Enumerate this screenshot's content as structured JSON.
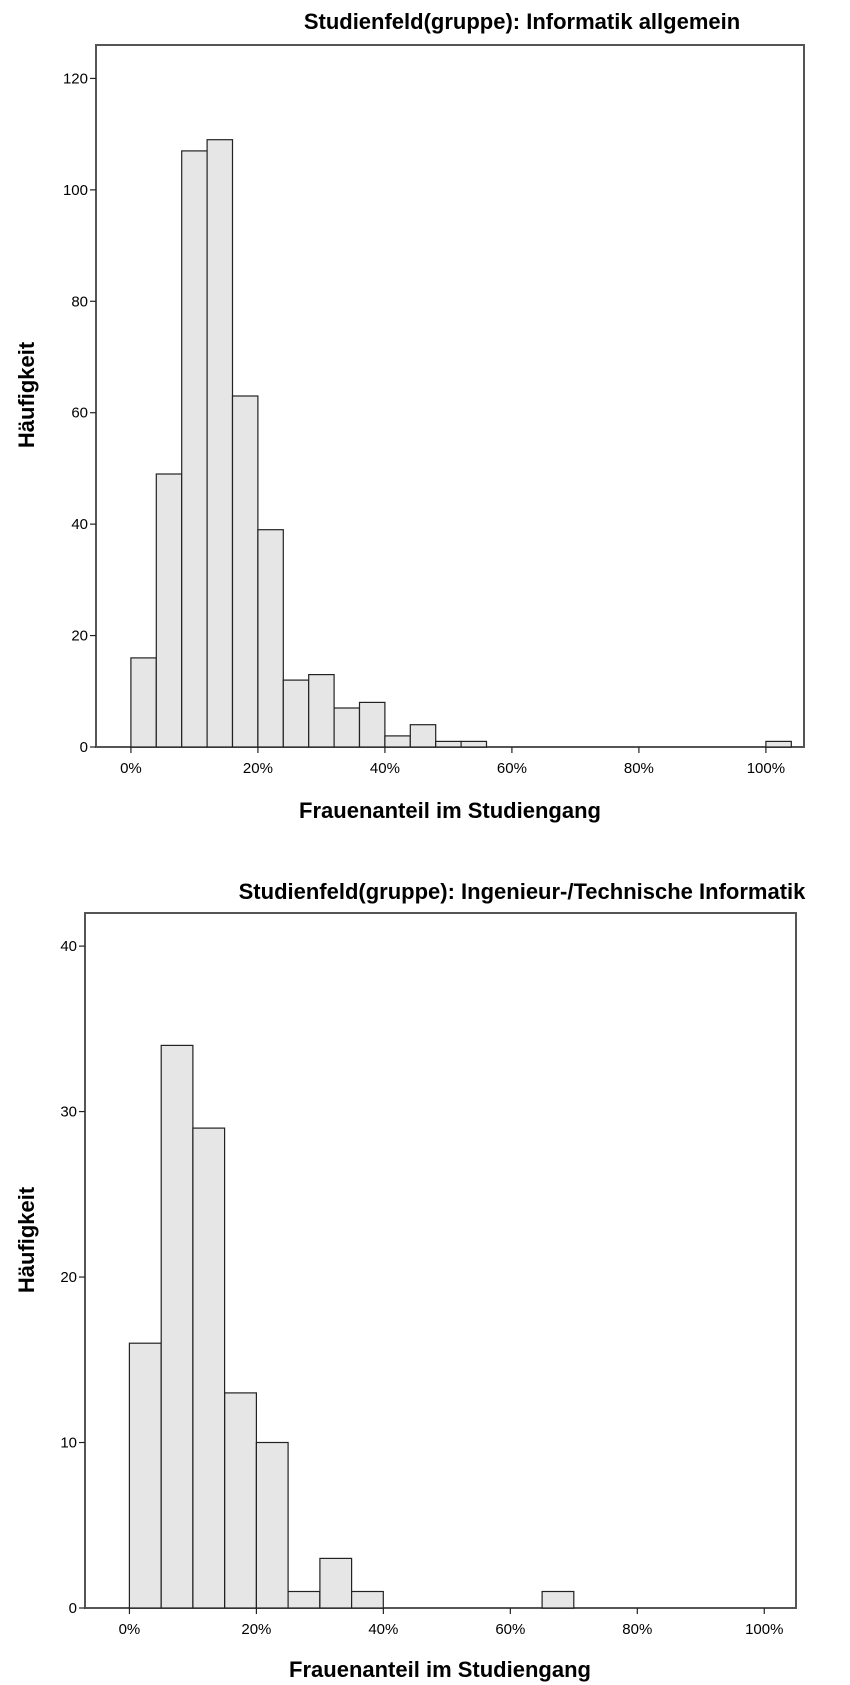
{
  "chart_data": [
    {
      "type": "bar",
      "title": "Studienfeld(gruppe): Informatik allgemein",
      "xlabel": "Frauenanteil im Studiengang",
      "ylabel": "Häufigkeit",
      "xlim": [
        -5.5,
        106
      ],
      "ylim": [
        0,
        126
      ],
      "bin_width": 4,
      "bins_start": [
        0,
        4,
        8,
        12,
        16,
        20,
        24,
        28,
        32,
        36,
        40,
        44,
        48,
        52,
        100
      ],
      "values": [
        16,
        49,
        107,
        109,
        63,
        39,
        12,
        13,
        7,
        8,
        2,
        4,
        1,
        1,
        1
      ],
      "xticks": [
        {
          "value": 0,
          "label": "0%"
        },
        {
          "value": 20,
          "label": "20%"
        },
        {
          "value": 40,
          "label": "40%"
        },
        {
          "value": 60,
          "label": "60%"
        },
        {
          "value": 80,
          "label": "80%"
        },
        {
          "value": 100,
          "label": "100%"
        }
      ],
      "yticks": [
        {
          "value": 0,
          "label": "0"
        },
        {
          "value": 20,
          "label": "20"
        },
        {
          "value": 40,
          "label": "40"
        },
        {
          "value": 60,
          "label": "60"
        },
        {
          "value": 80,
          "label": "80"
        },
        {
          "value": 100,
          "label": "100"
        },
        {
          "value": 120,
          "label": "120"
        }
      ],
      "grid": false,
      "bar_color": "#e6e6e6"
    },
    {
      "type": "bar",
      "title": "Studienfeld(gruppe): Ingenieur-/Technische Informatik",
      "xlabel": "Frauenanteil im Studiengang",
      "ylabel": "Häufigkeit",
      "xlim": [
        -7,
        105
      ],
      "ylim": [
        0,
        42
      ],
      "bin_width": 5,
      "bins_start": [
        0,
        5,
        10,
        15,
        20,
        25,
        30,
        35,
        65
      ],
      "values": [
        16,
        34,
        29,
        13,
        10,
        1,
        3,
        1,
        1
      ],
      "xticks": [
        {
          "value": 0,
          "label": "0%"
        },
        {
          "value": 20,
          "label": "20%"
        },
        {
          "value": 40,
          "label": "40%"
        },
        {
          "value": 60,
          "label": "60%"
        },
        {
          "value": 80,
          "label": "80%"
        },
        {
          "value": 100,
          "label": "100%"
        }
      ],
      "yticks": [
        {
          "value": 0,
          "label": "0"
        },
        {
          "value": 10,
          "label": "10"
        },
        {
          "value": 20,
          "label": "20"
        },
        {
          "value": 30,
          "label": "30"
        },
        {
          "value": 40,
          "label": "40"
        }
      ],
      "grid": false,
      "bar_color": "#e6e6e6"
    }
  ]
}
